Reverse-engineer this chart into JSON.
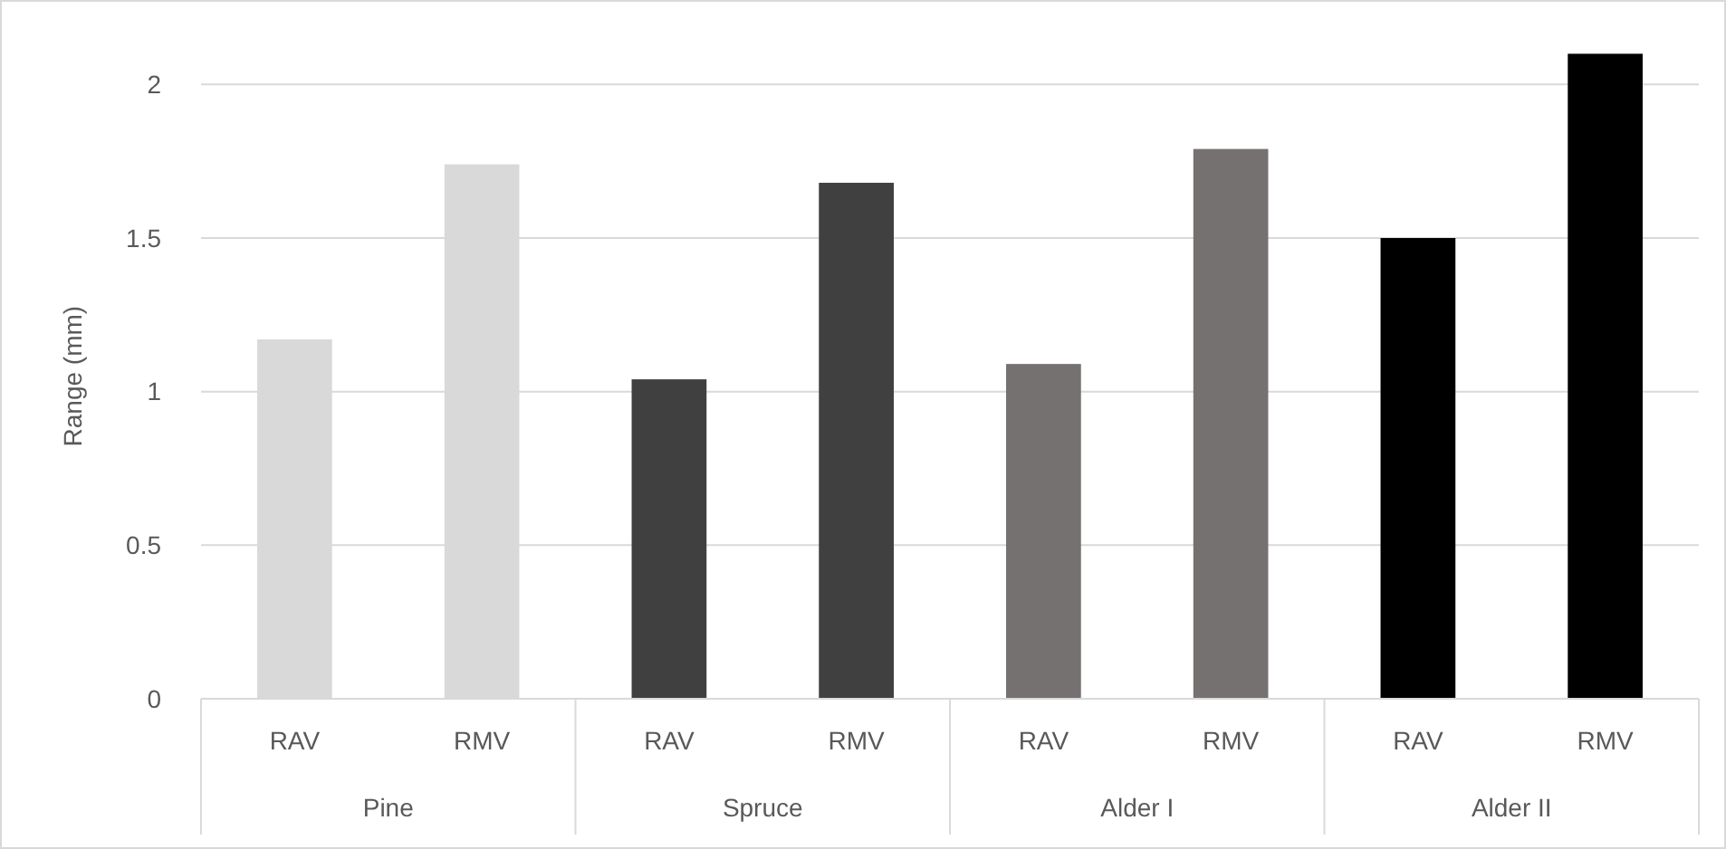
{
  "chart_data": {
    "type": "bar",
    "ylabel": "Range (mm)",
    "categories": [
      "RAV",
      "RMV",
      "RAV",
      "RMV",
      "RAV",
      "RMV",
      "RAV",
      "RMV"
    ],
    "annotations": [
      "Pine",
      "Spruce",
      "Alder I",
      "Alder II"
    ],
    "values": [
      1.17,
      1.74,
      1.04,
      1.68,
      1.09,
      1.79,
      1.5,
      2.1
    ],
    "colors": [
      "#d9d9d9",
      "#d9d9d9",
      "#404040",
      "#404040",
      "#767171",
      "#767171",
      "#000000",
      "#000000"
    ],
    "ylim": [
      0,
      2.1
    ],
    "yticks": [
      0,
      0.5,
      1,
      1.5,
      2
    ],
    "grid": "y"
  }
}
